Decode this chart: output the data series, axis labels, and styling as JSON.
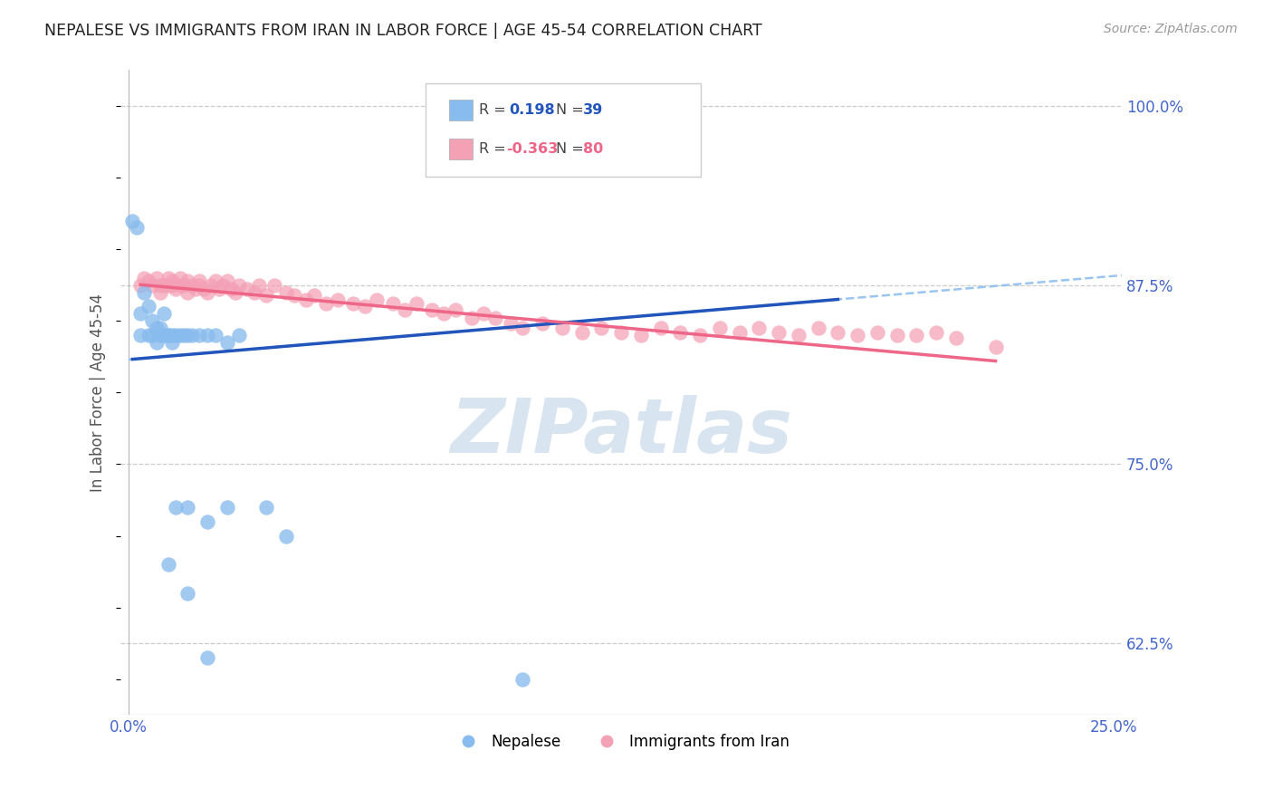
{
  "title": "NEPALESE VS IMMIGRANTS FROM IRAN IN LABOR FORCE | AGE 45-54 CORRELATION CHART",
  "source": "Source: ZipAtlas.com",
  "ylabel": "In Labor Force | Age 45-54",
  "xlim": [
    -0.002,
    0.252
  ],
  "ylim": [
    0.575,
    1.025
  ],
  "xticks": [
    0.0,
    0.05,
    0.1,
    0.15,
    0.2,
    0.25
  ],
  "xticklabels": [
    "0.0%",
    "",
    "",
    "",
    "",
    "25.0%"
  ],
  "yticks": [
    0.625,
    0.75,
    0.875,
    1.0
  ],
  "yticklabels": [
    "62.5%",
    "75.0%",
    "87.5%",
    "100.0%"
  ],
  "color_nepalese": "#88BBEE",
  "color_iran": "#F4A0B5",
  "color_blue_line": "#2255BB",
  "color_pink_line": "#EE6688",
  "color_blue_dashed": "#88BBEE",
  "color_axis_labels": "#4466CC",
  "color_grid": "#CCCCCC",
  "watermark_color": "#D8E4F0",
  "nepalese_x": [
    0.001,
    0.002,
    0.003,
    0.003,
    0.004,
    0.005,
    0.005,
    0.006,
    0.006,
    0.007,
    0.007,
    0.008,
    0.008,
    0.009,
    0.009,
    0.01,
    0.01,
    0.011,
    0.011,
    0.012,
    0.013,
    0.014,
    0.015,
    0.016,
    0.018,
    0.02,
    0.022,
    0.025,
    0.028,
    0.012,
    0.015,
    0.02,
    0.025,
    0.035,
    0.04,
    0.01,
    0.015,
    0.02,
    0.1
  ],
  "nepalese_y": [
    0.92,
    0.915,
    0.84,
    0.855,
    0.87,
    0.86,
    0.84,
    0.84,
    0.85,
    0.845,
    0.835,
    0.845,
    0.84,
    0.855,
    0.84,
    0.84,
    0.84,
    0.835,
    0.84,
    0.84,
    0.84,
    0.84,
    0.84,
    0.84,
    0.84,
    0.84,
    0.84,
    0.835,
    0.84,
    0.72,
    0.72,
    0.71,
    0.72,
    0.72,
    0.7,
    0.68,
    0.66,
    0.615,
    0.6
  ],
  "iran_x": [
    0.003,
    0.004,
    0.005,
    0.006,
    0.007,
    0.008,
    0.008,
    0.009,
    0.01,
    0.01,
    0.011,
    0.011,
    0.012,
    0.013,
    0.013,
    0.014,
    0.015,
    0.015,
    0.016,
    0.017,
    0.018,
    0.018,
    0.019,
    0.02,
    0.021,
    0.022,
    0.023,
    0.024,
    0.025,
    0.026,
    0.027,
    0.028,
    0.03,
    0.032,
    0.033,
    0.035,
    0.037,
    0.04,
    0.042,
    0.045,
    0.047,
    0.05,
    0.053,
    0.057,
    0.06,
    0.063,
    0.067,
    0.07,
    0.073,
    0.077,
    0.08,
    0.083,
    0.087,
    0.09,
    0.093,
    0.097,
    0.1,
    0.105,
    0.11,
    0.115,
    0.12,
    0.125,
    0.13,
    0.135,
    0.14,
    0.145,
    0.15,
    0.155,
    0.16,
    0.165,
    0.17,
    0.175,
    0.18,
    0.185,
    0.19,
    0.195,
    0.2,
    0.205,
    0.21,
    0.22
  ],
  "iran_y": [
    0.875,
    0.88,
    0.878,
    0.875,
    0.88,
    0.875,
    0.87,
    0.875,
    0.88,
    0.875,
    0.878,
    0.875,
    0.872,
    0.875,
    0.88,
    0.875,
    0.87,
    0.878,
    0.875,
    0.872,
    0.875,
    0.878,
    0.872,
    0.87,
    0.875,
    0.878,
    0.872,
    0.875,
    0.878,
    0.872,
    0.87,
    0.875,
    0.872,
    0.87,
    0.875,
    0.868,
    0.875,
    0.87,
    0.868,
    0.865,
    0.868,
    0.862,
    0.865,
    0.862,
    0.86,
    0.865,
    0.862,
    0.858,
    0.862,
    0.858,
    0.855,
    0.858,
    0.852,
    0.855,
    0.852,
    0.848,
    0.845,
    0.848,
    0.845,
    0.842,
    0.845,
    0.842,
    0.84,
    0.845,
    0.842,
    0.84,
    0.845,
    0.842,
    0.845,
    0.842,
    0.84,
    0.845,
    0.842,
    0.84,
    0.842,
    0.84,
    0.84,
    0.842,
    0.838,
    0.832
  ]
}
